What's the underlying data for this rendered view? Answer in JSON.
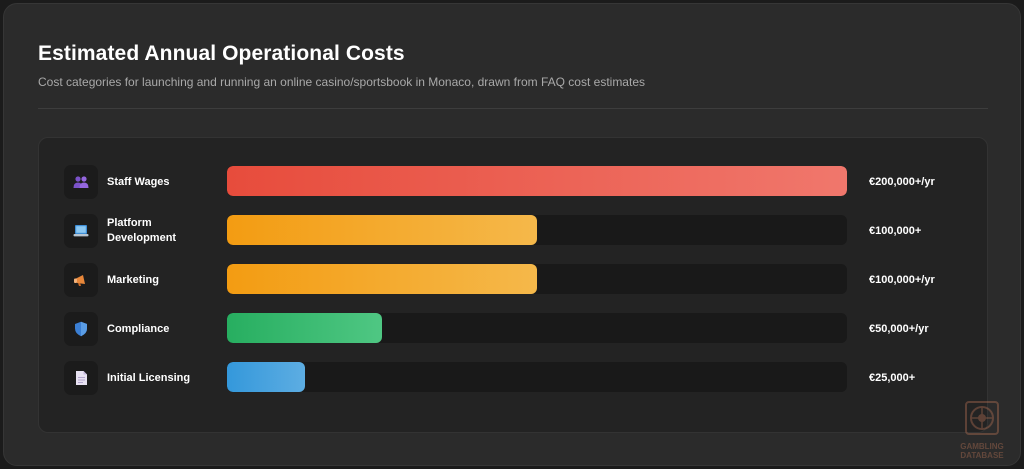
{
  "header": {
    "title": "Estimated Annual Operational Costs",
    "subtitle": "Cost categories for launching and running an online casino/sportsbook in Monaco, drawn from FAQ cost estimates"
  },
  "chart_data": {
    "type": "bar",
    "orientation": "horizontal",
    "title": "Estimated Annual Operational Costs",
    "subtitle": "Cost categories for launching and running an online casino/sportsbook in Monaco, drawn from FAQ cost estimates",
    "xlim": [
      0,
      200000
    ],
    "grid": false,
    "items": [
      {
        "label": "Staff Wages",
        "value": 200000,
        "value_label": "€200,000+/yr",
        "icon": "people-icon",
        "color_start": "#e74c3c",
        "color_end": "#f0776c"
      },
      {
        "label": "Platform Development",
        "value": 100000,
        "value_label": "€100,000+",
        "icon": "laptop-icon",
        "color_start": "#f39c12",
        "color_end": "#f5b84a"
      },
      {
        "label": "Marketing",
        "value": 100000,
        "value_label": "€100,000+/yr",
        "icon": "megaphone-icon",
        "color_start": "#f39c12",
        "color_end": "#f5b84a"
      },
      {
        "label": "Compliance",
        "value": 50000,
        "value_label": "€50,000+/yr",
        "icon": "shield-icon",
        "color_start": "#27ae60",
        "color_end": "#4fc783"
      },
      {
        "label": "Initial Licensing",
        "value": 25000,
        "value_label": "€25,000+",
        "icon": "document-icon",
        "color_start": "#3498db",
        "color_end": "#5dade2"
      }
    ]
  },
  "watermark": {
    "text_line1": "GAMBLING",
    "text_line2": "DATABASE"
  }
}
